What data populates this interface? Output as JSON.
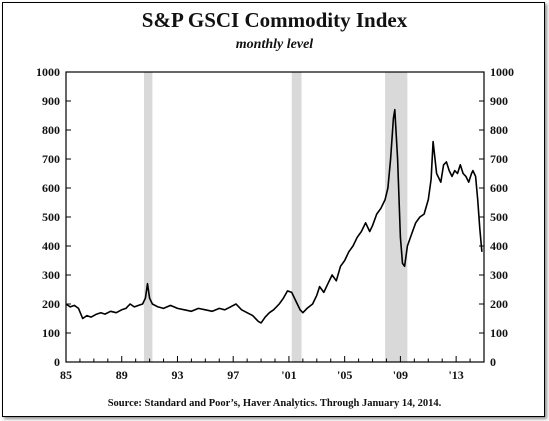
{
  "chart_data": {
    "type": "line",
    "title": "S&P GSCI Commodity Index",
    "subtitle": "monthly level",
    "source": "Source: Standard and Poor’s, Haver Analytics. Through January 14, 2014.",
    "xlabel": "",
    "ylabel": "",
    "xlim": [
      1985,
      2015
    ],
    "ylim": [
      0,
      1000
    ],
    "x_ticks": [
      {
        "value": 1985,
        "label": "85"
      },
      {
        "value": 1989,
        "label": "89"
      },
      {
        "value": 1993,
        "label": "93"
      },
      {
        "value": 1997,
        "label": "97"
      },
      {
        "value": 2001,
        "label": "'01"
      },
      {
        "value": 2005,
        "label": "'05"
      },
      {
        "value": 2009,
        "label": "'09"
      },
      {
        "value": 2013,
        "label": "'13"
      }
    ],
    "y_ticks": [
      0,
      100,
      200,
      300,
      400,
      500,
      600,
      700,
      800,
      900,
      1000
    ],
    "grid": false,
    "recessions": [
      [
        1990.6,
        1991.2
      ],
      [
        2001.2,
        2001.9
      ],
      [
        2007.9,
        2009.5
      ]
    ],
    "series": [
      {
        "color": "#000000",
        "x": [
          1985.0,
          1985.3,
          1985.6,
          1985.9,
          1986.2,
          1986.5,
          1986.8,
          1987.2,
          1987.5,
          1987.8,
          1988.2,
          1988.6,
          1989.0,
          1989.3,
          1989.6,
          1989.9,
          1990.2,
          1990.5,
          1990.7,
          1990.85,
          1991.0,
          1991.2,
          1991.6,
          1992.0,
          1992.5,
          1993.0,
          1993.5,
          1994.0,
          1994.5,
          1995.0,
          1995.5,
          1996.0,
          1996.4,
          1996.8,
          1997.2,
          1997.6,
          1998.0,
          1998.4,
          1998.8,
          1999.0,
          1999.3,
          1999.6,
          1999.9,
          2000.3,
          2000.6,
          2000.9,
          2001.2,
          2001.5,
          2001.8,
          2002.0,
          2002.3,
          2002.7,
          2003.0,
          2003.2,
          2003.5,
          2003.8,
          2004.1,
          2004.4,
          2004.7,
          2005.0,
          2005.3,
          2005.6,
          2005.9,
          2006.2,
          2006.5,
          2006.8,
          2007.0,
          2007.3,
          2007.6,
          2007.9,
          2008.1,
          2008.3,
          2008.5,
          2008.6,
          2008.8,
          2009.0,
          2009.15,
          2009.3,
          2009.5,
          2009.8,
          2010.1,
          2010.4,
          2010.7,
          2011.0,
          2011.2,
          2011.35,
          2011.6,
          2011.9,
          2012.1,
          2012.3,
          2012.5,
          2012.7,
          2012.9,
          2013.1,
          2013.3,
          2013.5,
          2013.7,
          2013.9,
          2014.1,
          2014.2,
          2014.4,
          2014.55,
          2014.7,
          2014.85
        ],
        "y": [
          200,
          190,
          195,
          185,
          150,
          160,
          155,
          165,
          170,
          165,
          175,
          170,
          180,
          185,
          200,
          190,
          195,
          200,
          220,
          270,
          220,
          200,
          190,
          185,
          195,
          185,
          180,
          175,
          185,
          180,
          175,
          185,
          180,
          190,
          200,
          180,
          170,
          160,
          140,
          135,
          155,
          170,
          180,
          200,
          220,
          245,
          240,
          210,
          180,
          170,
          185,
          200,
          230,
          260,
          240,
          270,
          300,
          280,
          330,
          350,
          380,
          400,
          430,
          450,
          480,
          450,
          470,
          510,
          530,
          560,
          600,
          700,
          840,
          870,
          700,
          430,
          340,
          330,
          400,
          440,
          480,
          500,
          510,
          560,
          630,
          760,
          650,
          620,
          680,
          690,
          660,
          640,
          660,
          650,
          680,
          650,
          640,
          620,
          650,
          660,
          640,
          560,
          460,
          380
        ]
      }
    ]
  }
}
